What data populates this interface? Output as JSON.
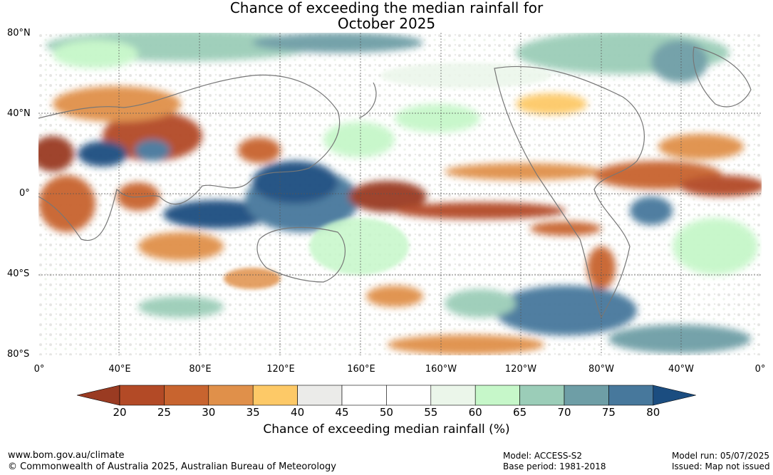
{
  "title": {
    "line1": "Chance of exceeding the median rainfall for",
    "line2": "October 2025"
  },
  "lat_labels": [
    "80°N",
    "40°N",
    "0°",
    "40°S",
    "80°S"
  ],
  "lon_labels": [
    "0°",
    "40°E",
    "80°E",
    "120°E",
    "160°E",
    "160°W",
    "120°W",
    "80°W",
    "40°W",
    "0°"
  ],
  "colorbar": {
    "ticks": [
      "20",
      "25",
      "30",
      "35",
      "40",
      "45",
      "50",
      "55",
      "60",
      "65",
      "70",
      "75",
      "80"
    ],
    "colors": [
      "#9a3b22",
      "#b34a26",
      "#c8642f",
      "#e0904a",
      "#fdc967",
      "#ebebe9",
      "#ffffff",
      "#ffffff",
      "#ebf6ea",
      "#c6f7c9",
      "#9bcdb8",
      "#6e9ea6",
      "#47789c",
      "#1b4d80"
    ],
    "label": "Chance of exceeding median rainfall (%)"
  },
  "footer": {
    "url": "www.bom.gov.au/climate",
    "copyright": "© Commonwealth of Australia 2025, Australian Bureau of Meteorology",
    "model": "Model: ACCESS-S2",
    "base_period": "Base period: 1981-2018",
    "model_run": "Model run: 05/07/2025",
    "issued": "Issued: Map not issued"
  }
}
